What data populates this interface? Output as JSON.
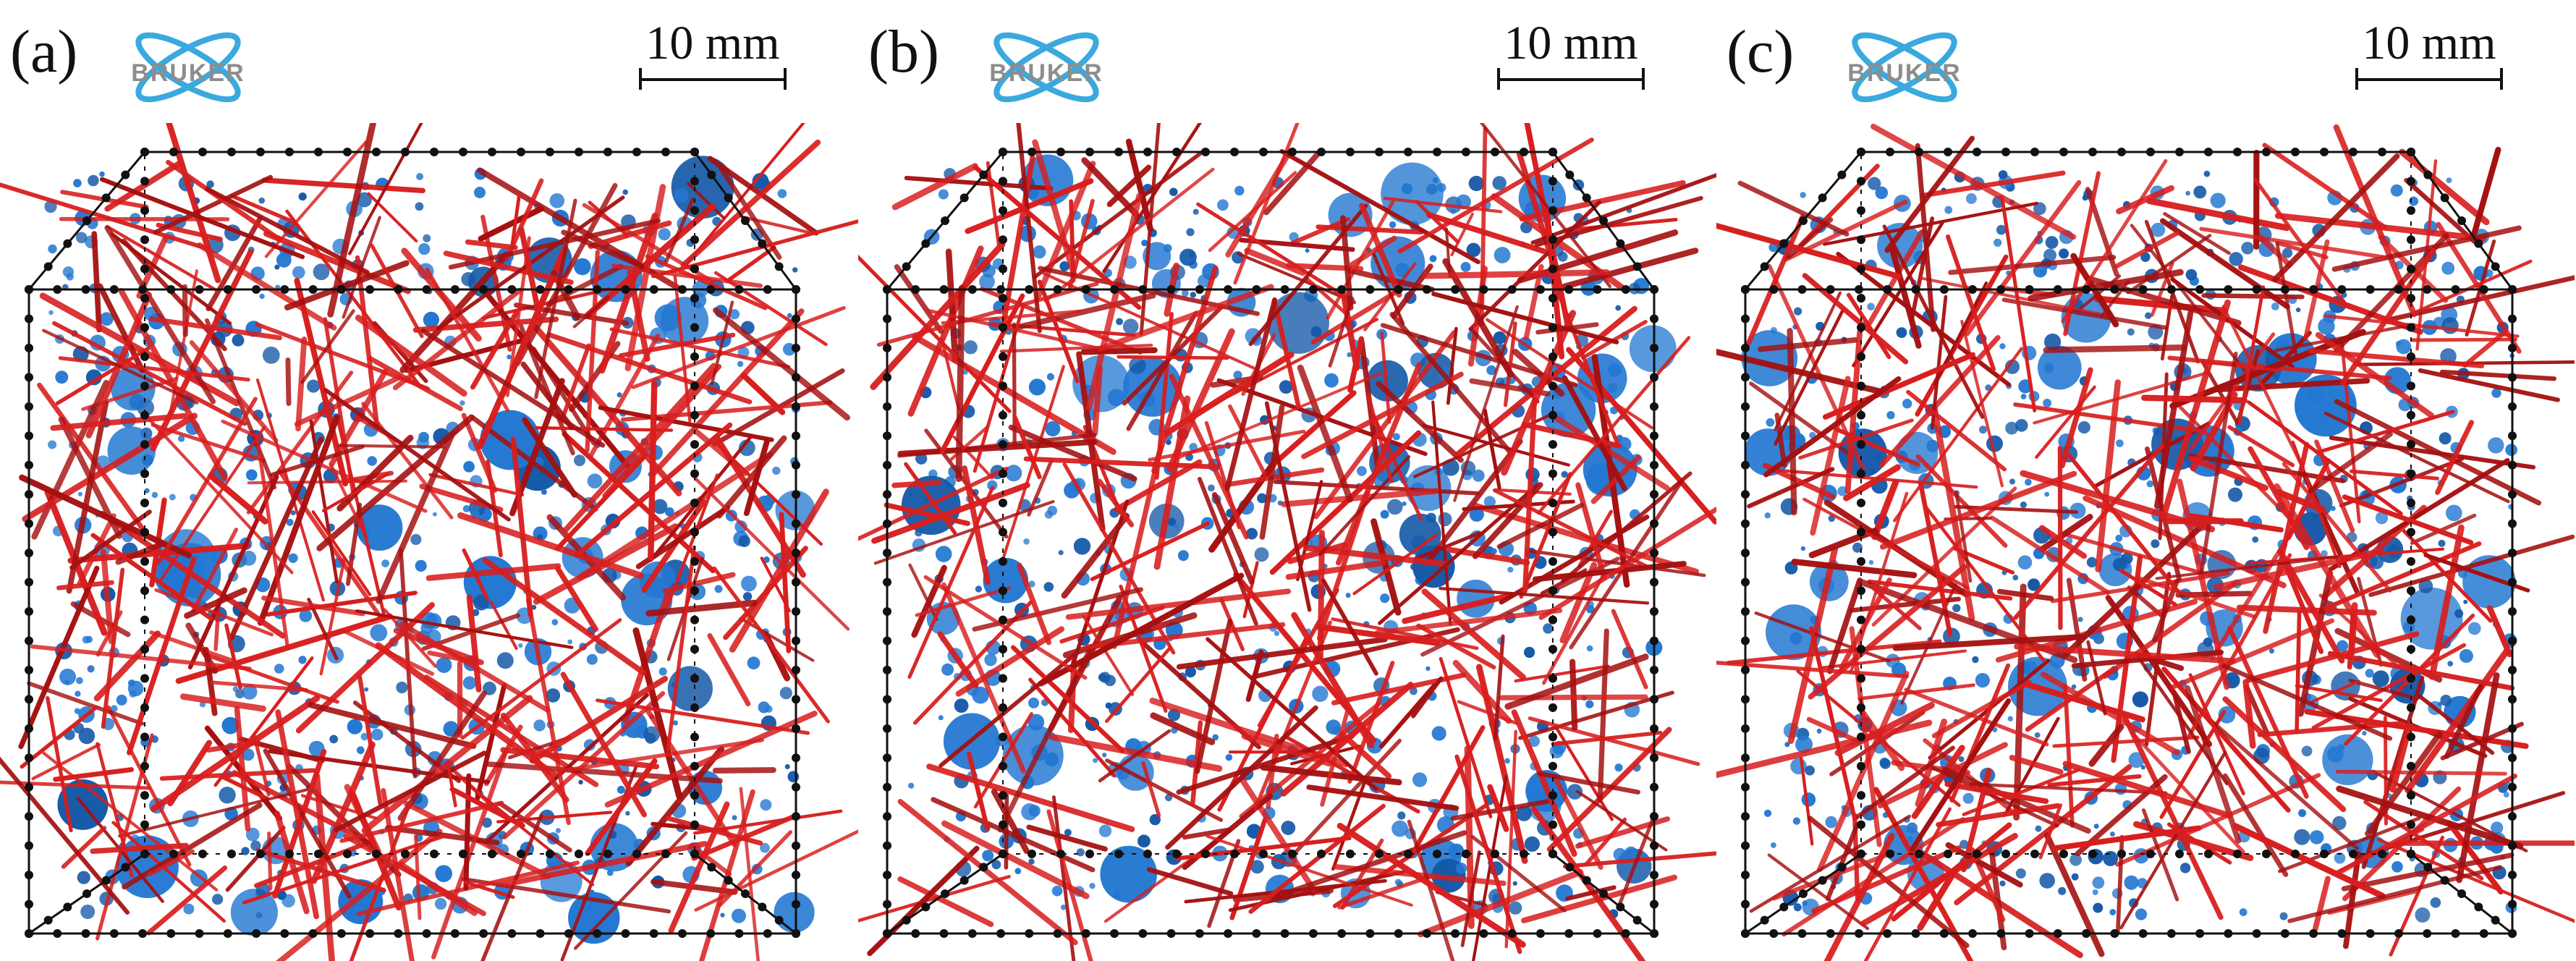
{
  "panels": [
    {
      "label": "(a)",
      "logo_text": "BRUKER",
      "scale_text": "10 mm"
    },
    {
      "label": "(b)",
      "logo_text": "BRUKER",
      "scale_text": "10 mm"
    },
    {
      "label": "(c)",
      "logo_text": "BRUKER",
      "scale_text": "10 mm"
    }
  ],
  "colors": {
    "fiber": "#d81e1e",
    "fiber_dark": "#a51010",
    "pore": "#2377d1",
    "pore_dark": "#1559a8",
    "edge": "#111111"
  }
}
